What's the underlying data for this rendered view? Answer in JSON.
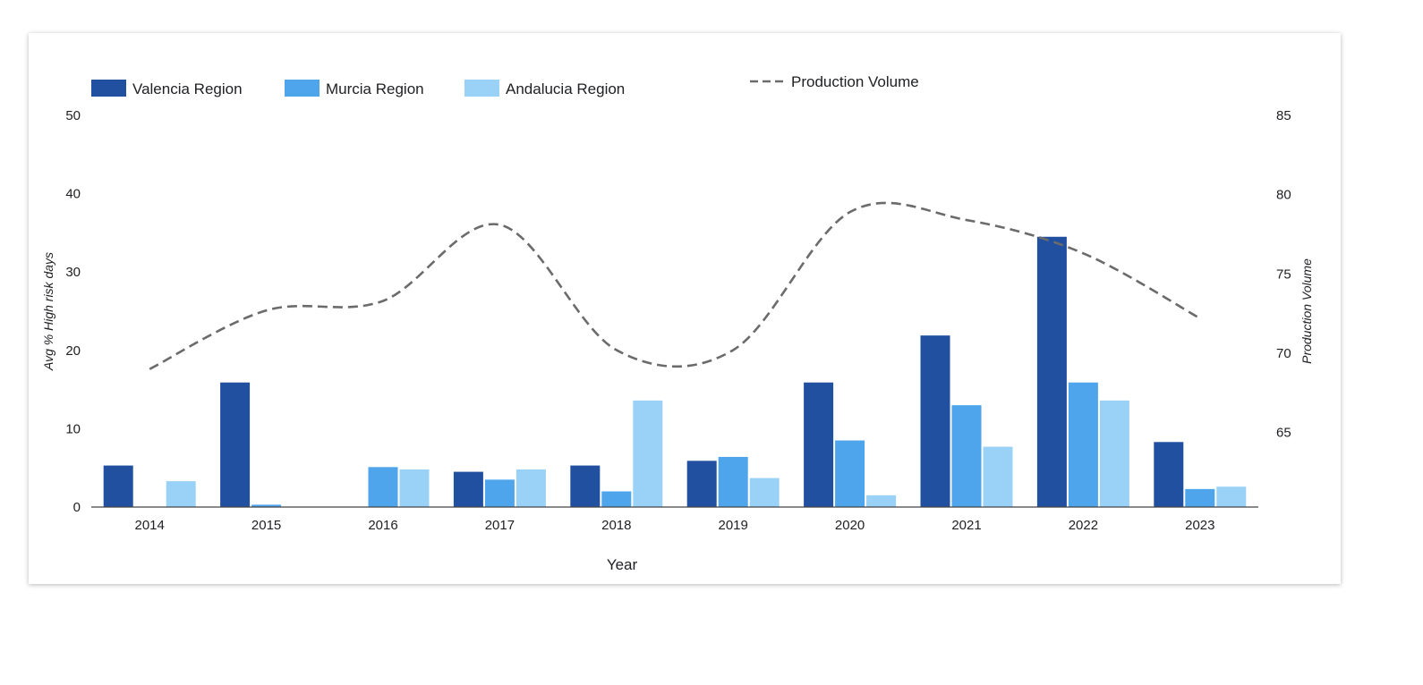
{
  "chart_data": {
    "type": "bar",
    "xlabel": "Year",
    "ylabel": "Avg % High risk days",
    "y2label": "Production Volume",
    "ylim": [
      0,
      50
    ],
    "y2lim": [
      60.3,
      85
    ],
    "yticks": [
      0,
      10,
      20,
      30,
      40,
      50
    ],
    "y2ticks": [
      65,
      70,
      75,
      80,
      85
    ],
    "categories": [
      "2014",
      "2015",
      "2016",
      "2017",
      "2018",
      "2019",
      "2020",
      "2021",
      "2022",
      "2023"
    ],
    "series": [
      {
        "name": "Valencia Region",
        "color": "#2250a0",
        "values": [
          5.3,
          15.9,
          0,
          4.5,
          5.3,
          5.9,
          15.9,
          21.9,
          34.5,
          8.3
        ]
      },
      {
        "name": "Murcia Region",
        "color": "#4ea5ec",
        "values": [
          0,
          0.3,
          5.1,
          3.5,
          2.0,
          6.4,
          8.5,
          13.0,
          15.9,
          2.3
        ]
      },
      {
        "name": "Andalucia Region",
        "color": "#99d2f6",
        "values": [
          3.3,
          0,
          4.8,
          4.8,
          13.6,
          3.7,
          1.5,
          7.7,
          13.6,
          2.6
        ]
      }
    ],
    "line_series": {
      "name": "Production Volume",
      "color": "#6b6b6b",
      "style": "dashed",
      "axis": "right",
      "values": [
        69.0,
        72.7,
        73.3,
        78.1,
        70.2,
        70.2,
        78.9,
        78.4,
        76.3,
        72.2
      ]
    },
    "legend": "top",
    "grid": false
  }
}
